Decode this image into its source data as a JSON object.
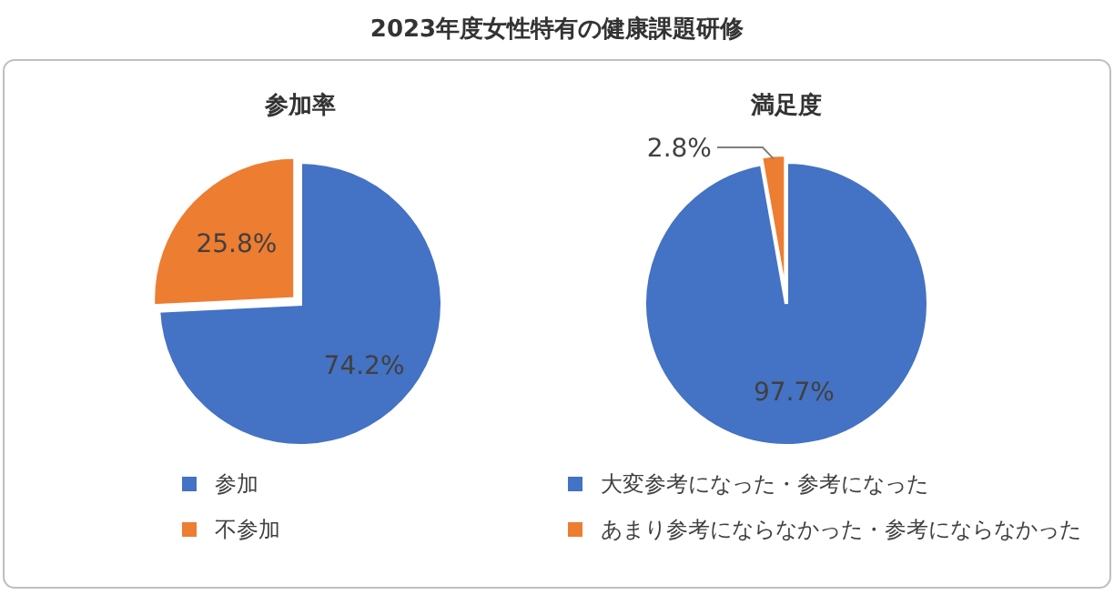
{
  "chart_data": [
    {
      "type": "pie",
      "title": "参加率",
      "annotations": [
        "2023年度女性特有の健康課題研修"
      ],
      "categories": [
        "参加",
        "不参加"
      ],
      "values": [
        74.2,
        25.8
      ],
      "value_labels": [
        "74.2%",
        "25.8%"
      ],
      "colors": [
        "#4472c4",
        "#ed7d31"
      ],
      "legend": "bottom"
    },
    {
      "type": "pie",
      "title": "満足度",
      "categories": [
        "大変参考になった・参考になった",
        "あまり参考にならなかった・参考にならなかった"
      ],
      "values": [
        97.7,
        2.8
      ],
      "value_labels": [
        "97.7%",
        "2.8%"
      ],
      "colors": [
        "#4472c4",
        "#ed7d31"
      ],
      "legend": "bottom"
    }
  ]
}
